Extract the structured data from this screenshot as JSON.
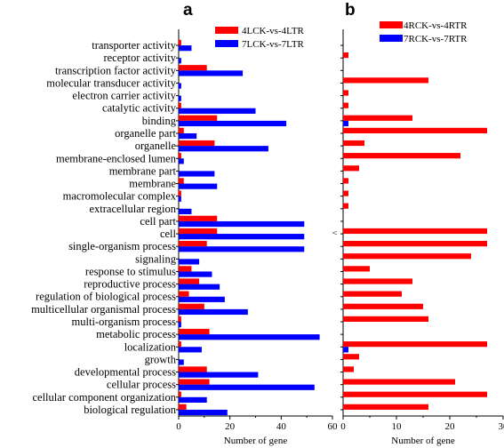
{
  "chart_data": [
    {
      "type": "bar",
      "orientation": "horizontal",
      "panel_label": "a",
      "xlabel": "Number of gene",
      "xlim": [
        0,
        60
      ],
      "xticks": [
        0,
        20,
        40,
        60
      ],
      "legend_position": "top-right",
      "categories": [
        "transporter activity",
        "receptor activity",
        "transcription factor activity",
        "molecular transducer activity",
        "electron carrier activity",
        "catalytic activity",
        "binding",
        "organelle part",
        "organelle",
        "membrane-enclosed lumen",
        "membrane part",
        "membrane",
        "macromolecular complex",
        "extracellular region",
        "cell part",
        "cell",
        "single-organism process",
        "signaling",
        "response to stimulus",
        "reproductive process",
        "regulation of biological process",
        "multicellular organismal process",
        "multi-organism process",
        "metabolic process",
        "localization",
        "growth",
        "developmental process",
        "cellular process",
        "cellular component organization",
        "biological regulation"
      ],
      "series": [
        {
          "name": "4LCK-vs-4LTR",
          "color": "#ff0000",
          "values": [
            1,
            0,
            11,
            0,
            0,
            1,
            15,
            2,
            14,
            1,
            0,
            2,
            1,
            0,
            15,
            15,
            11,
            0,
            5,
            8,
            4,
            10,
            1,
            12,
            1,
            0,
            11,
            12,
            1,
            3
          ]
        },
        {
          "name": "7LCK-vs-7LTR",
          "color": "#0000ff",
          "values": [
            5,
            1,
            25,
            1,
            1,
            30,
            42,
            7,
            35,
            2,
            14,
            15,
            1,
            5,
            49,
            49,
            49,
            8,
            13,
            16,
            18,
            27,
            1,
            55,
            9,
            2,
            31,
            53,
            11,
            19
          ]
        }
      ]
    },
    {
      "type": "bar",
      "orientation": "horizontal",
      "panel_label": "b",
      "xlabel": "Number  of gene",
      "xlim": [
        0,
        30
      ],
      "xticks": [
        0,
        10,
        20,
        30
      ],
      "legend_position": "top-right",
      "stray_mark": "^",
      "series": [
        {
          "name": "4RCK-vs-4RTR",
          "color": "#ff0000",
          "values": [
            0,
            1,
            0,
            16,
            1,
            1,
            13,
            27,
            4,
            22,
            3,
            1,
            1,
            1,
            0,
            27,
            27,
            24,
            5,
            13,
            11,
            15,
            16,
            0,
            27,
            3,
            2,
            21,
            27,
            16
          ]
        },
        {
          "name": "7RCK-vs-7RTR",
          "color": "#0000ff",
          "values": [
            0,
            0,
            0,
            0,
            0,
            0,
            1,
            0,
            0,
            0,
            0,
            0,
            0,
            0,
            0,
            0,
            0,
            0,
            0,
            0,
            0,
            0,
            0,
            0,
            1,
            0,
            0,
            0,
            0,
            0
          ]
        }
      ]
    }
  ]
}
